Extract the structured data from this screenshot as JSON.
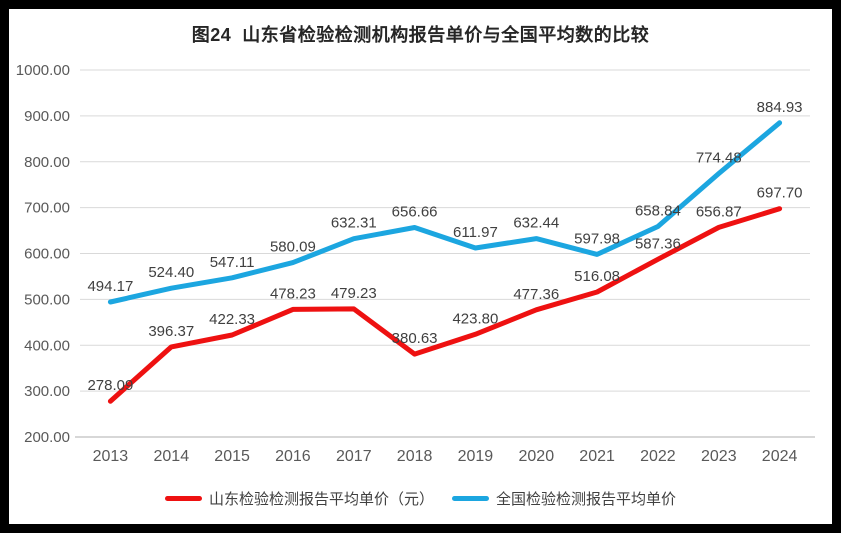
{
  "chart_data": {
    "type": "line",
    "title": "图24  山东省检验检测机构报告单价与全国平均数的比较",
    "categories": [
      "2013",
      "2014",
      "2015",
      "2016",
      "2017",
      "2018",
      "2019",
      "2020",
      "2021",
      "2022",
      "2023",
      "2024"
    ],
    "series": [
      {
        "name": "山东检验检测报告平均单价（元）",
        "color": "#ee1111",
        "values": [
          278.09,
          396.37,
          422.33,
          478.23,
          479.23,
          380.63,
          423.8,
          477.36,
          516.08,
          587.36,
          656.87,
          697.7
        ]
      },
      {
        "name": "全国检验检测报告平均单价",
        "color": "#1ca6e0",
        "values": [
          494.17,
          524.4,
          547.11,
          580.09,
          632.31,
          656.66,
          611.97,
          632.44,
          597.98,
          658.84,
          774.48,
          884.93
        ]
      }
    ],
    "xlabel": "",
    "ylabel": "",
    "ylim": [
      200,
      1000
    ],
    "ytick_step": 100,
    "ytick_labels": [
      "200.00",
      "300.00",
      "400.00",
      "500.00",
      "600.00",
      "700.00",
      "800.00",
      "900.00",
      "1000.00"
    ],
    "grid": true,
    "data_labels": true,
    "legend_position": "bottom",
    "grid_color": "#d9d9d9",
    "axis_color": "#bfbfbf",
    "tick_color": "#595959",
    "data_label_color": "#404040",
    "title_color": "#262626",
    "frame_color": "#000000",
    "background": "#ffffff"
  }
}
